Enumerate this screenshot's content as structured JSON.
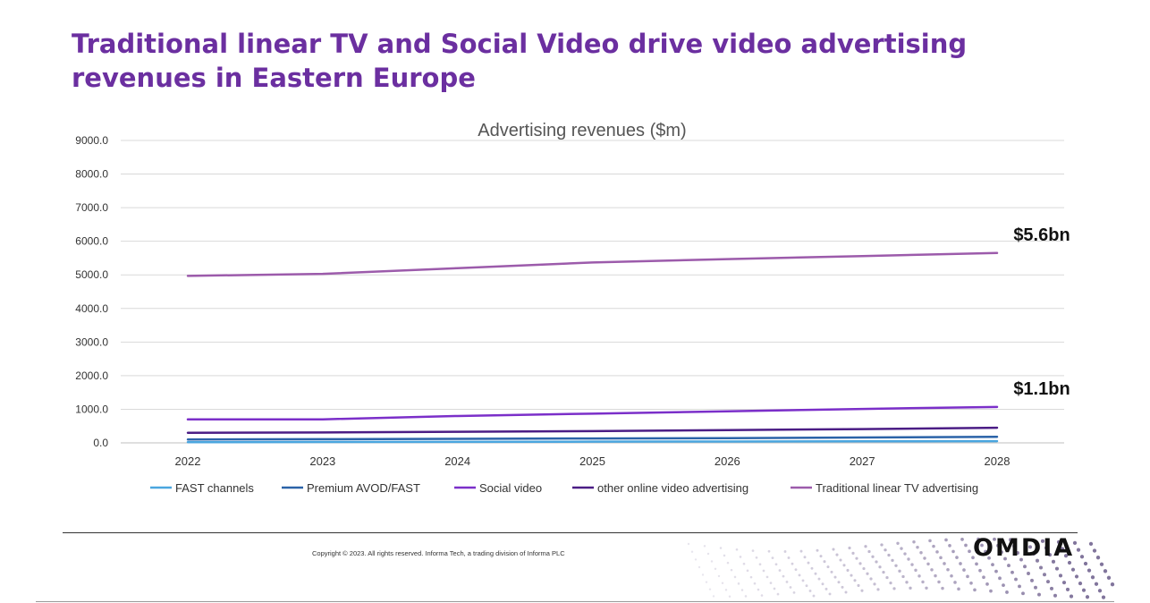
{
  "slide": {
    "title": "Traditional linear TV and Social Video drive video advertising revenues in Eastern Europe",
    "copyright": "Copyright © 2023. All rights reserved. Informa Tech, a trading division of Informa PLC",
    "logo_text": "OMDIA"
  },
  "chart_data": {
    "type": "line",
    "title": "Advertising revenues ($m)",
    "xlabel": "",
    "ylabel": "",
    "categories": [
      "2022",
      "2023",
      "2024",
      "2025",
      "2026",
      "2027",
      "2028"
    ],
    "ylim": [
      0,
      9000
    ],
    "yticks": [
      "0.0",
      "1000.0",
      "2000.0",
      "3000.0",
      "4000.0",
      "5000.0",
      "6000.0",
      "7000.0",
      "8000.0",
      "9000.0"
    ],
    "ytick_values": [
      0,
      1000,
      2000,
      3000,
      4000,
      5000,
      6000,
      7000,
      8000,
      9000
    ],
    "grid": true,
    "legend_position": "bottom",
    "series": [
      {
        "name": "FAST channels",
        "color": "#4aa6df",
        "values": [
          20,
          25,
          30,
          35,
          40,
          45,
          50
        ]
      },
      {
        "name": "Premium AVOD/FAST",
        "color": "#2b63a8",
        "values": [
          100,
          110,
          120,
          130,
          140,
          160,
          180
        ]
      },
      {
        "name": "Social video",
        "color": "#7b2fc9",
        "values": [
          700,
          700,
          800,
          870,
          940,
          1010,
          1070
        ]
      },
      {
        "name": "other online video advertising",
        "color": "#4b1d85",
        "values": [
          300,
          310,
          330,
          350,
          380,
          410,
          450
        ]
      },
      {
        "name": "Traditional linear TV advertising",
        "color": "#9c5bab",
        "values": [
          4970,
          5030,
          5200,
          5370,
          5470,
          5560,
          5650
        ]
      }
    ],
    "annotations": [
      {
        "text": "$5.6bn",
        "series_index": 4
      },
      {
        "text": "$1.1bn",
        "series_index": 2
      }
    ]
  }
}
